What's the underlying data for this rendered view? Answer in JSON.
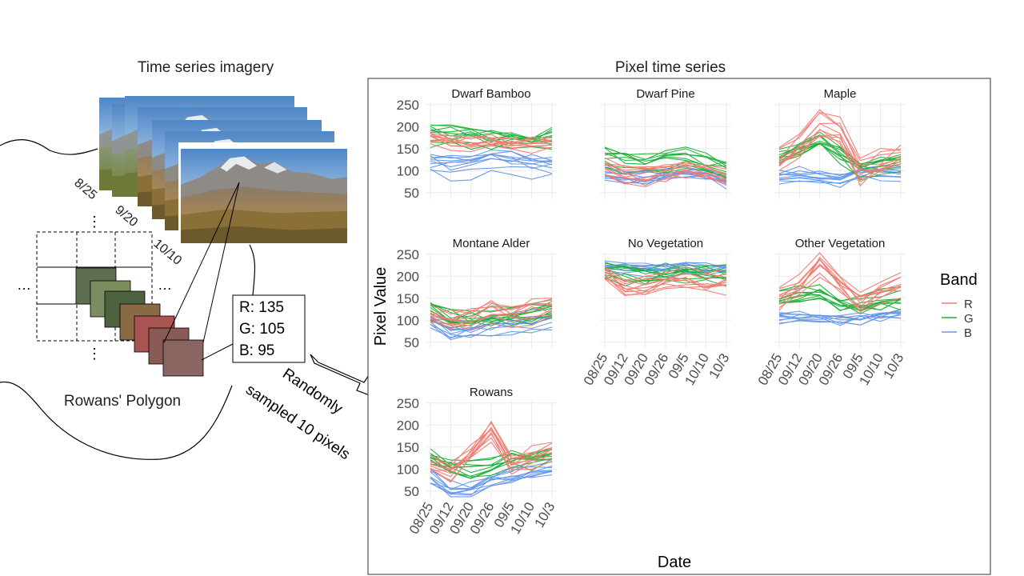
{
  "diagram": {
    "imagery_title": "Time series imagery",
    "panel_title": "Pixel time series",
    "image_dates": [
      "8/25",
      "9/20",
      "10/10"
    ],
    "ellipsis": "…",
    "vertical_ellipsis": "⋮",
    "polygon_label": "Rowans' Polygon",
    "pixel_values": [
      "R: 135",
      "G: 105",
      "B: 95"
    ],
    "pixel_color": "#8a6660",
    "patch_colors": [
      "#5f6e50",
      "#7c8e60",
      "#4e6240",
      "#8a6a45",
      "#a85450",
      "#8a5a55",
      "#8a6660"
    ],
    "arrow_label_lines": [
      "Randomly",
      "sampled 10 pixels"
    ]
  },
  "chart_data": {
    "type": "line",
    "xlabel": "Date",
    "ylabel": "Pixel Value",
    "x_ticks": [
      "08/25",
      "09/12",
      "09/20",
      "09/26",
      "09/5",
      "10/10",
      "10/3"
    ],
    "y_ticks": [
      50,
      100,
      150,
      200,
      250
    ],
    "ylim": [
      35,
      255
    ],
    "grid": true,
    "legend": {
      "title": "Band",
      "placement": "right",
      "entries": [
        {
          "label": "R",
          "color": "#f07b72"
        },
        {
          "label": "G",
          "color": "#1fb039"
        },
        {
          "label": "B",
          "color": "#6496e8"
        }
      ]
    },
    "panels": [
      {
        "title": "Dwarf Bamboo",
        "bands": {
          "R": {
            "center": [
              165,
              160,
              158,
              162,
              160,
              158,
              156
            ],
            "spread": 14
          },
          "G": {
            "center": [
              180,
              178,
              170,
              168,
              166,
              164,
              170
            ],
            "spread": 16
          },
          "B": {
            "center": [
              112,
              105,
              110,
              115,
              112,
              108,
              106
            ],
            "spread": 20
          }
        }
      },
      {
        "title": "Dwarf Pine",
        "bands": {
          "R": {
            "center": [
              112,
              92,
              88,
              95,
              105,
              95,
              85
            ],
            "spread": 14
          },
          "G": {
            "center": [
              135,
              118,
              115,
              118,
              128,
              112,
              100
            ],
            "spread": 16
          },
          "B": {
            "center": [
              95,
              85,
              82,
              88,
              95,
              88,
              75
            ],
            "spread": 12
          }
        }
      },
      {
        "title": "Maple",
        "bands": {
          "R": {
            "center": [
              130,
              160,
              210,
              190,
              100,
              120,
              140
            ],
            "spread": 20
          },
          "G": {
            "center": [
              130,
              150,
              170,
              140,
              105,
              115,
              125
            ],
            "spread": 15
          },
          "B": {
            "center": [
              85,
              88,
              88,
              80,
              95,
              92,
              90
            ],
            "spread": 12
          }
        }
      },
      {
        "title": "Montane Alder",
        "bands": {
          "R": {
            "center": [
              110,
              95,
              105,
              125,
              110,
              120,
              130
            ],
            "spread": 18
          },
          "G": {
            "center": [
              125,
              105,
              100,
              105,
              110,
              115,
              125
            ],
            "spread": 18
          },
          "B": {
            "center": [
              100,
              75,
              78,
              90,
              92,
              98,
              105
            ],
            "spread": 16
          }
        }
      },
      {
        "title": "No Vegetation",
        "bands": {
          "R": {
            "center": [
              205,
              175,
              170,
              185,
              190,
              180,
              185
            ],
            "spread": 18
          },
          "G": {
            "center": [
              215,
              205,
              200,
              205,
              208,
              200,
              200
            ],
            "spread": 16
          },
          "B": {
            "center": [
              222,
              218,
              215,
              218,
              220,
              215,
              215
            ],
            "spread": 10
          }
        }
      },
      {
        "title": "Other Vegetation",
        "bands": {
          "R": {
            "center": [
              145,
              175,
              225,
              185,
              140,
              165,
              180
            ],
            "spread": 18
          },
          "G": {
            "center": [
              155,
              165,
              170,
              140,
              135,
              145,
              150
            ],
            "spread": 15
          },
          "B": {
            "center": [
              100,
              102,
              100,
              95,
              100,
              105,
              110
            ],
            "spread": 12
          }
        }
      },
      {
        "title": "Rowans",
        "bands": {
          "R": {
            "center": [
              105,
              90,
              130,
              185,
              110,
              125,
              140
            ],
            "spread": 18
          },
          "G": {
            "center": [
              120,
              100,
              90,
              100,
              115,
              115,
              125
            ],
            "spread": 16
          },
          "B": {
            "center": [
              85,
              55,
              55,
              80,
              90,
              100,
              105
            ],
            "spread": 15
          }
        }
      }
    ]
  }
}
